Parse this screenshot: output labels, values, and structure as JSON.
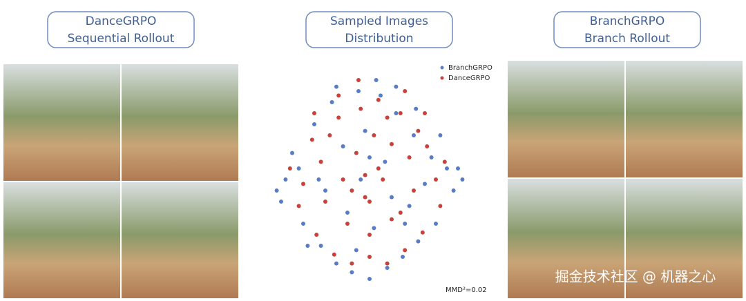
{
  "panels": [
    {
      "title_lines": [
        "DanceGRPO",
        "Sequential Rollout"
      ]
    },
    {
      "title_lines": [
        "Sampled Images",
        "Distribution"
      ]
    },
    {
      "title_lines": [
        "BranchGRPO",
        "Branch Rollout"
      ]
    }
  ],
  "watermark": "掘金技术社区 @ 机器之心",
  "chart_data": {
    "type": "scatter",
    "xlim": [
      0,
      100
    ],
    "ylim": [
      0,
      100
    ],
    "legend": "upper right",
    "annotation": "MMD²=0.02",
    "series": [
      {
        "name": "BranchGRPO",
        "color": "#5a7cc4",
        "x": [
          12,
          20,
          28,
          35,
          42,
          50,
          58,
          65,
          72,
          80,
          88,
          15,
          25,
          33,
          45,
          55,
          62,
          70,
          78,
          85,
          10,
          18,
          30,
          40,
          52,
          60,
          68,
          75,
          90,
          22,
          38,
          48,
          57,
          66,
          82,
          27,
          44,
          53,
          71,
          50,
          35,
          62,
          8,
          92,
          46
        ],
        "values": [
          50,
          30,
          20,
          12,
          8,
          5,
          10,
          15,
          22,
          30,
          45,
          62,
          75,
          85,
          90,
          88,
          80,
          70,
          60,
          55,
          40,
          55,
          45,
          35,
          28,
          42,
          38,
          48,
          55,
          20,
          65,
          72,
          58,
          30,
          70,
          50,
          18,
          95,
          82,
          60,
          92,
          92,
          45,
          50,
          50
        ]
      },
      {
        "name": "DanceGRPO",
        "color": "#c8423b",
        "x": [
          18,
          26,
          34,
          42,
          50,
          58,
          66,
          74,
          82,
          14,
          24,
          36,
          46,
          54,
          64,
          72,
          84,
          20,
          30,
          40,
          50,
          60,
          70,
          80,
          28,
          38,
          48,
          56,
          68,
          76,
          44,
          52,
          60,
          32,
          42,
          54,
          64,
          48,
          58,
          36,
          66,
          50,
          25,
          75,
          45
        ],
        "values": [
          38,
          25,
          16,
          12,
          15,
          12,
          18,
          26,
          38,
          55,
          68,
          78,
          82,
          86,
          80,
          72,
          58,
          48,
          40,
          30,
          25,
          32,
          45,
          50,
          58,
          50,
          42,
          50,
          60,
          65,
          62,
          70,
          66,
          70,
          45,
          55,
          35,
          52,
          78,
          88,
          90,
          40,
          80,
          80,
          95
        ]
      }
    ]
  }
}
